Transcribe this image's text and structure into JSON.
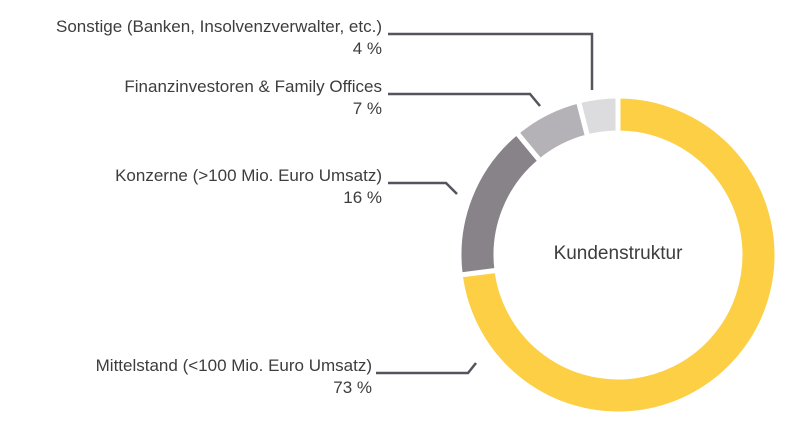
{
  "chart_data": {
    "type": "pie",
    "title": "Kundenstruktur",
    "series": [
      {
        "name": "Mittelstand (<100 Mio. Euro Umsatz)",
        "value": 73,
        "value_label": "73 %",
        "color": "#fccf45"
      },
      {
        "name": "Konzerne (>100 Mio. Euro Umsatz)",
        "value": 16,
        "value_label": "16 %",
        "color": "#878389"
      },
      {
        "name": "Finanzinvestoren & Family Offices",
        "value": 7,
        "value_label": "7 %",
        "color": "#b4b2b7"
      },
      {
        "name": "Sonstige (Banken, Insolvenzverwalter, etc.)",
        "value": 4,
        "value_label": "4 %",
        "color": "#dcdbde"
      }
    ],
    "legend": "left, with leader lines"
  },
  "colors": {
    "leader_line": "#56535d",
    "text": "#3d3d3d"
  }
}
